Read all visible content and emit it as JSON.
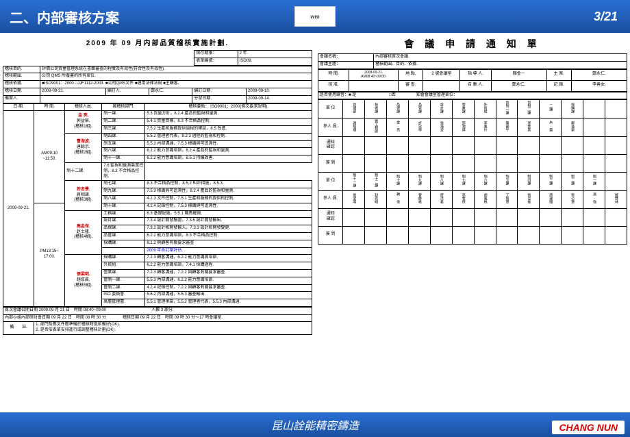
{
  "header": {
    "title": "二、内部審核方案",
    "page": "3/21",
    "top_logo": "wm"
  },
  "footer": {
    "text": "昆山詮能精密鑄造",
    "brand": "CHANG NUN"
  },
  "left": {
    "title": "2009 年 09 月内部品質稽核實施計劃.",
    "info": {
      "k1": "保存期限：",
      "v1": "2 年.",
      "k2": "表單編號：",
      "v2": "ISO09.",
      "r1": "稽核目的.",
      "r1v": "評價公司質量管理系統在書面審查的程度及有效性(符合性及有效性).",
      "r2": "稽核範圍.",
      "r2v": "公司 QMS 所覆蓋的所有單位.",
      "r3": "稽核依據.",
      "r3v": "■ISO9001：2000 □JJF1112-2003. ■公司QMS文件 ■適用法律法規 ■主顧客.",
      "r4a": "稽核日期.",
      "r4av": "2009-09-21.",
      "r4b": "編訂人.",
      "r4bv": "鄭永仁.",
      "r4c": "編訂日期.",
      "r4cv": "2009-09-10.",
      "r5": "備案人.",
      "r5c": "分發日期.",
      "r5cv": "2009-09-14."
    },
    "cols": {
      "c1": "日  期.",
      "c2": "時  間.",
      "c3": "稽核人員.",
      "c4": "被稽核部門.",
      "c5": "稽核要點：\nISO9001：2000(條文要求說明)."
    },
    "date": "2009-09-21.",
    "time1": "AM09:10\n~11:50.",
    "time2": "PM13:15~\n17:00.",
    "auditors": [
      {
        "name": "金   亮.",
        "sub": "郭益榮.",
        "g": "(稽核1組)."
      },
      {
        "name": "曹海波.",
        "sub": "唐聪示.",
        "g": "(稽核2組)."
      },
      {
        "name": "許忠學.",
        "sub": "蔣相璜.",
        "g": "(稽核3組)."
      },
      {
        "name": "高金保.",
        "sub": "赵士隆.",
        "g": "(稽核4組)."
      },
      {
        "name": "張梁明.",
        "sub": "趙厚晨.",
        "g": "(稽核5組)."
      }
    ],
    "rows": [
      {
        "d": "制一課.",
        "p": "5.3 質量方針，8.2.4 產品的監視和量測."
      },
      {
        "d": "制二課.",
        "p": "5.4.1 質量目標，8.3 不合格品控制."
      },
      {
        "d": "制三課.",
        "p": "7.5.2 生產和服務提供過程的確認，8.5 改進."
      },
      {
        "d": "制四課.",
        "p": "5.5.2 管理者代表，8.2.3 過程的監視和控制."
      },
      {
        "d": "制五課.",
        "p": "5.5.3 內部溝通，7.5.3 標識與可追溯性."
      },
      {
        "d": "制六課.",
        "p": "6.2.2 能力意識培訓，8.2.4 產品的監視和量測."
      },
      {
        "d": "制十一課.",
        "p": "6.2.2 能力意識培訓，8.5.1 持續改善."
      },
      {
        "d": "制十二課.",
        "p": "7.6 監視和量測裝置控制，8.3 不合格品控制."
      },
      {
        "d": "制七課.",
        "p": "8.3 不合格品控制，8.5.2 糾正措施，8.5.3."
      },
      {
        "d": "制九課.",
        "p": "7.5.3 標識與可追溯性，8.2.4 產品的監視和量測."
      },
      {
        "d": "制八課.",
        "p": "4.2.3 文件控制，7.5.1 生產和服務的提供的控制."
      },
      {
        "d": "制十課.",
        "p": "4.2.4 記錄控制，7.5.3 標識與可追溯性."
      },
      {
        "d": "工務課.",
        "p": "6.3 基礎設施，5.5.1 職責權限."
      },
      {
        "d": "設計課.",
        "p": "7.3.4 設計開發驗證，7.3.5 設計開發輸出."
      },
      {
        "d": "品保課.",
        "p": "7.3.2 設計和開發輸入，7.3.3 設計和開發變更."
      },
      {
        "d": "品管課.",
        "p": "6.2.2 能力意識培訓，8.3 不合格品控制."
      },
      {
        "d": "採購課.",
        "p": "8.1.2 與顧客有關要求審查"
      },
      {
        "d": "",
        "p": "2009 年各訂案評估.",
        "blue": true
      },
      {
        "d": "採購課.",
        "p": "7.2.3 顧客溝通，6.2.2 能力意識與培訓."
      },
      {
        "d": "外貿組.",
        "p": "6.2.2 能力意識培訓，7.4.1 採購過程."
      },
      {
        "d": "營業課.",
        "p": "7.2.3 顧客溝通，7.2.2 與顧客有關要求審查."
      },
      {
        "d": "管制一課.",
        "p": "5.5.3 內部溝通，6.2.2 能力意識培訓."
      },
      {
        "d": "管制二課.",
        "p": "4.2.4 記錄控制，7.2.2 與顧客有關要求審查."
      },
      {
        "d": "ISO 委員會.",
        "p": "5.6.2 內部溝通，5.6.3 審查輸出."
      },
      {
        "d": "高層管理層.",
        "p": "5.5.1 管理承諾，5.5.2 管理者代表，5.5.3 內部溝通."
      }
    ],
    "btm1": "首次會議召開日期 2009.09 月 21 日　時間 08:40~09:00　　　　　　　　　　　人數 3 部分.",
    "btm2": "內部小組內部研討會日期 09 月 22 日　時間 08 時 30 分　　　　稽核日期 09 月 22 日　時間 09 時 30 分～17 時會議室.",
    "note_l": "備　　註.",
    "note": "1. 部門及應文件應準備於稽核時提前備好(OK).\n2. 是否依表單安排進行或調整稽核計劃(OK)."
  },
  "right": {
    "title": "會 議 申 請 通 知 單",
    "r1a": "會議名稱：",
    "r1b": "內部審核首次會議.",
    "r2a": "會議主題：",
    "r2b": "稽核範圍、目的、依據.",
    "t1": "時  間.",
    "t1v": "2009-09-21.\nAM08:40~09:00.",
    "t2": "地 點.",
    "t2v": "2 號會議室",
    "t3": "指 導 人.",
    "t3v": "顏會一",
    "t4": "主  席.",
    "t4v": "鄭永仁.",
    "u1": "核  准.",
    "u2": "審  查.",
    "u3": "召 集 人.",
    "u3v": "鄭永仁.",
    "u4": "記  錄.",
    "u4v": "李善女.",
    "rec": "是否使用錄音：■ 是　　　　　　　　□否　　　　　知會會議室管理單位：",
    "unit_l": "單 位",
    "units1": [
      "管理部",
      "技術課",
      "品保課",
      "品管課",
      "設計課",
      "營業課",
      "外貿組",
      "管制一課",
      "管制二課",
      "二課",
      "採購課",
      "",
      ""
    ],
    "att_l": "參人 員.",
    "names1": [
      "謝經理",
      "劉工程師",
      "金.亮",
      "許忠學",
      "張海波",
      "邵湘璜",
      "李鳳玲",
      "陳韻平",
      "孫金其",
      "朱.震",
      "鄭益榮",
      "",
      ""
    ],
    "notice": "通知\n確認",
    "sign": "簽 到",
    "units2": [
      "制十一課",
      "制十二課",
      "制十課",
      "制九課",
      "制八課",
      "制七課",
      "制六課",
      "制五課",
      "制四課",
      "制三課",
      "制二課",
      "制一課",
      ""
    ],
    "names2": [
      "張梁明",
      "封奕暗",
      "轉.偉",
      "曹群峰",
      "唐洪君",
      "高金保",
      "胡風樵",
      "丁幫軍",
      "張亞能",
      "唐建國",
      "張公賢",
      "孫.強",
      "戴雙林"
    ]
  }
}
